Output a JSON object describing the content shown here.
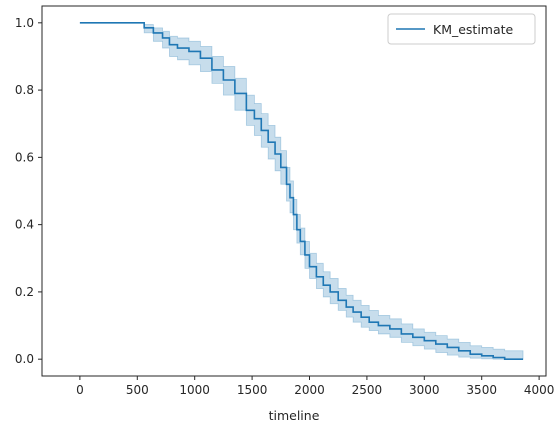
{
  "chart_data": {
    "type": "line",
    "step": true,
    "title": "",
    "xlabel": "timeline",
    "ylabel": "",
    "xlim": [
      -330,
      4060
    ],
    "ylim": [
      -0.05,
      1.05
    ],
    "xticks": [
      0,
      500,
      1000,
      1500,
      2000,
      2500,
      3000,
      3500,
      4000
    ],
    "yticks": [
      0.0,
      0.2,
      0.4,
      0.6,
      0.8,
      1.0
    ],
    "xtick_labels": [
      "0",
      "500",
      "1000",
      "1500",
      "2000",
      "2500",
      "3000",
      "3500",
      "4000"
    ],
    "ytick_labels": [
      "0.0",
      "0.2",
      "0.4",
      "0.6",
      "0.8",
      "1.0"
    ],
    "grid": false,
    "legend": {
      "position": "top-right",
      "entries": [
        "KM_estimate"
      ]
    },
    "colors": {
      "line": "#1f77b4",
      "band": "#1f77b4"
    },
    "series": [
      {
        "name": "KM_estimate",
        "x": [
          0,
          560,
          640,
          720,
          780,
          850,
          950,
          1050,
          1150,
          1250,
          1350,
          1450,
          1520,
          1580,
          1640,
          1700,
          1750,
          1800,
          1830,
          1860,
          1890,
          1920,
          1960,
          2000,
          2060,
          2120,
          2180,
          2250,
          2320,
          2380,
          2450,
          2520,
          2600,
          2700,
          2800,
          2900,
          3000,
          3100,
          3200,
          3300,
          3400,
          3500,
          3600,
          3700,
          3860
        ],
        "y": [
          1.0,
          0.985,
          0.97,
          0.955,
          0.935,
          0.925,
          0.915,
          0.895,
          0.86,
          0.83,
          0.79,
          0.74,
          0.715,
          0.68,
          0.645,
          0.61,
          0.57,
          0.52,
          0.48,
          0.43,
          0.385,
          0.35,
          0.31,
          0.275,
          0.245,
          0.22,
          0.2,
          0.175,
          0.155,
          0.14,
          0.125,
          0.11,
          0.1,
          0.09,
          0.075,
          0.065,
          0.055,
          0.045,
          0.035,
          0.025,
          0.015,
          0.01,
          0.005,
          0.0,
          0.0
        ],
        "ci_lower": [
          1.0,
          0.97,
          0.945,
          0.925,
          0.9,
          0.89,
          0.875,
          0.855,
          0.82,
          0.785,
          0.74,
          0.695,
          0.665,
          0.63,
          0.595,
          0.56,
          0.52,
          0.47,
          0.435,
          0.385,
          0.345,
          0.31,
          0.27,
          0.24,
          0.21,
          0.185,
          0.165,
          0.145,
          0.125,
          0.11,
          0.095,
          0.085,
          0.075,
          0.065,
          0.05,
          0.04,
          0.03,
          0.02,
          0.012,
          0.006,
          0.003,
          0.001,
          0.0,
          0.0,
          0.0
        ],
        "ci_upper": [
          1.0,
          0.995,
          0.985,
          0.975,
          0.96,
          0.955,
          0.945,
          0.93,
          0.9,
          0.87,
          0.835,
          0.785,
          0.76,
          0.73,
          0.695,
          0.66,
          0.62,
          0.57,
          0.53,
          0.475,
          0.43,
          0.39,
          0.35,
          0.315,
          0.285,
          0.26,
          0.24,
          0.21,
          0.19,
          0.175,
          0.16,
          0.145,
          0.13,
          0.12,
          0.105,
          0.09,
          0.08,
          0.07,
          0.06,
          0.05,
          0.04,
          0.035,
          0.03,
          0.025,
          0.025
        ]
      }
    ]
  }
}
